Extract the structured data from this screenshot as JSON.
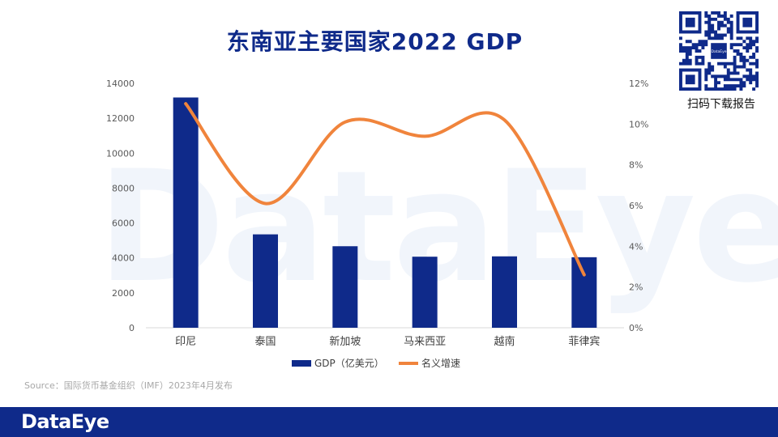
{
  "title": "东南亚主要国家2022 GDP",
  "qr": {
    "caption": "扫码下载报告",
    "center_label": "DataEye"
  },
  "watermark": "DataEye",
  "source": "Source：国际货币基金组织（IMF）2023年4月发布",
  "footer": {
    "logo": "DataEye"
  },
  "colors": {
    "bar": "#0f2a8a",
    "line": "#f0843c",
    "title": "#0f2a8a",
    "footer": "#0f2a8a"
  },
  "chart_data": {
    "type": "bar+line",
    "categories": [
      "印尼",
      "泰国",
      "新加坡",
      "马来西亚",
      "越南",
      "菲律宾"
    ],
    "series": [
      {
        "name": "GDP（亿美元）",
        "type": "bar",
        "axis": "left",
        "values": [
          13190,
          5350,
          4670,
          4070,
          4090,
          4040
        ]
      },
      {
        "name": "名义增速",
        "type": "line",
        "axis": "right",
        "values": [
          11.0,
          6.1,
          10.1,
          9.4,
          10.2,
          2.6
        ]
      }
    ],
    "y_left": {
      "ticks": [
        "0",
        "2000",
        "4000",
        "6000",
        "8000",
        "10000",
        "12000",
        "14000"
      ],
      "range": [
        0,
        14000
      ]
    },
    "y_right": {
      "ticks": [
        "0%",
        "2%",
        "4%",
        "6%",
        "8%",
        "10%",
        "12%"
      ],
      "range": [
        0,
        12
      ]
    },
    "legend_position": "bottom",
    "grid": false
  }
}
